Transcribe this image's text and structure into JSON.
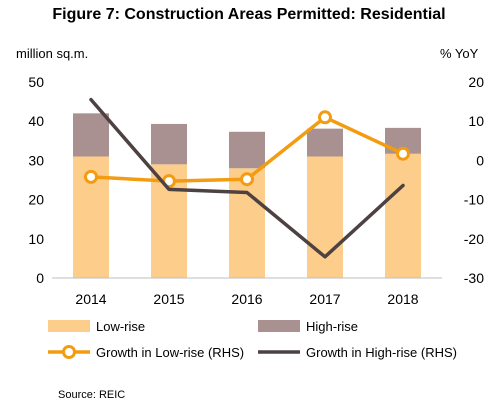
{
  "title": "Figure 7: Construction Areas Permitted: Residential",
  "source": "Source: REIC",
  "chart_data": {
    "type": "bar",
    "categories": [
      "2014",
      "2015",
      "2016",
      "2017",
      "2018"
    ],
    "left_unit": "million sq.m.",
    "right_unit": "% YoY",
    "ylim_left": [
      0,
      50
    ],
    "yticks_left": [
      "0",
      "10",
      "20",
      "30",
      "40",
      "50"
    ],
    "ylim_right": [
      -30,
      20
    ],
    "yticks_right": [
      "-30",
      "-20",
      "-10",
      "0",
      "10",
      "20"
    ],
    "stacked_bars": [
      {
        "name": "Low-rise",
        "color": "#FDCD8B",
        "values": [
          31,
          29,
          28,
          31,
          31.7
        ]
      },
      {
        "name": "High-rise",
        "color": "#A89190",
        "values": [
          11,
          10.3,
          9.3,
          7.1,
          6.6
        ]
      }
    ],
    "lines": [
      {
        "name": "Growth in Low-rise (RHS)",
        "color": "#F39C12",
        "markers": true,
        "values": [
          -4.2,
          -5.3,
          -4.8,
          11.0,
          1.7
        ]
      },
      {
        "name": "Growth in High-rise (RHS)",
        "color": "#4D4142",
        "markers": false,
        "values": [
          15.5,
          -7.4,
          -8.2,
          -24.6,
          -6.4
        ]
      }
    ],
    "grid": false,
    "legend_position": "bottom"
  }
}
